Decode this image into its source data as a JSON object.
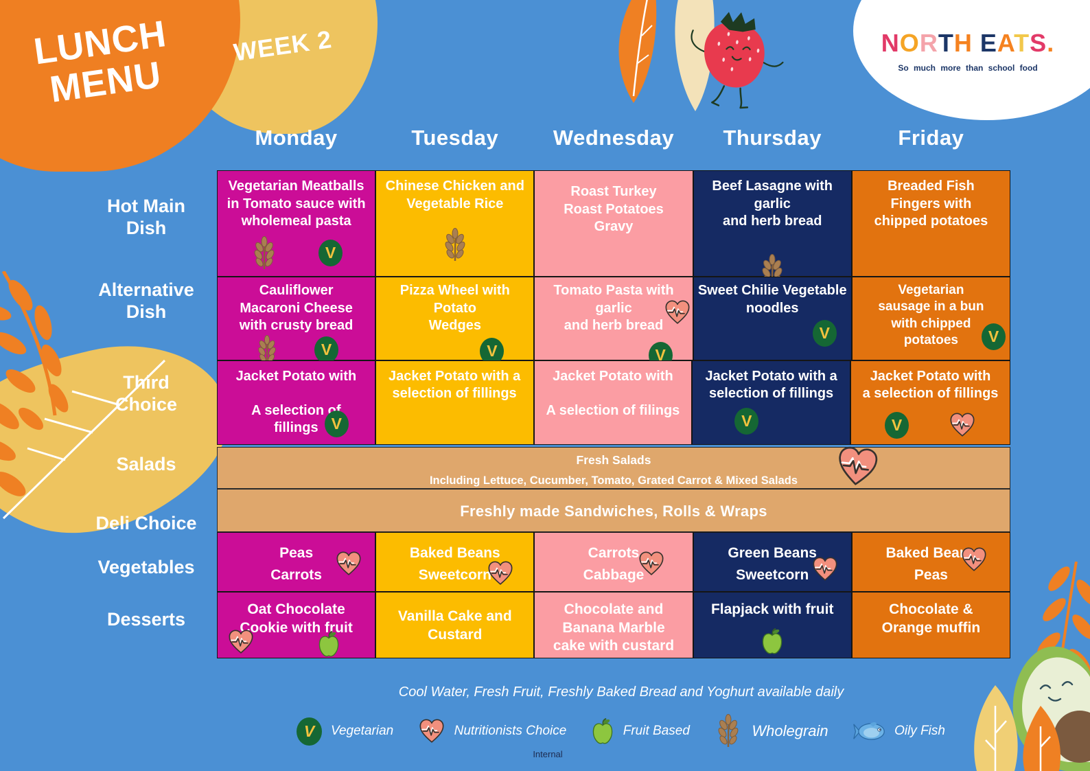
{
  "header": {
    "title": "LUNCH\nMENU",
    "week": "WEEK 2",
    "logo": {
      "letters": [
        {
          "ch": "N",
          "color": "#e23a68"
        },
        {
          "ch": "O",
          "color": "#f5a425"
        },
        {
          "ch": "R",
          "color": "#f4a3aa"
        },
        {
          "ch": "T",
          "color": "#1c3667"
        },
        {
          "ch": "H",
          "color": "#f58220"
        },
        {
          "ch": " ",
          "color": "#ffffff"
        },
        {
          "ch": "E",
          "color": "#1c3667"
        },
        {
          "ch": "A",
          "color": "#f58220"
        },
        {
          "ch": "T",
          "color": "#f2c84b"
        },
        {
          "ch": "S",
          "color": "#e23a68"
        },
        {
          "ch": ".",
          "color": "#f58220"
        }
      ],
      "tagline": "So much more than school food"
    }
  },
  "days": [
    "Monday",
    "Tuesday",
    "Wednesday",
    "Thursday",
    "Friday"
  ],
  "grid": {
    "hot_main": {
      "label": "Hot Main\nDish",
      "cells": [
        {
          "text": "Vegetarian Meatballs\nin Tomato sauce with\nwholemeal pasta",
          "icons": [
            "wholegrain",
            "vegetarian"
          ]
        },
        {
          "text": "Chinese Chicken and\nVegetable Rice",
          "icons": [
            "wholegrain"
          ]
        },
        {
          "text": "Roast Turkey\nRoast Potatoes\nGravy",
          "icons": []
        },
        {
          "text": "Beef Lasagne with garlic\nand herb bread",
          "icons": [
            "wholegrain"
          ]
        },
        {
          "text": "Breaded Fish\nFingers with\nchipped potatoes",
          "icons": []
        }
      ]
    },
    "alternative": {
      "label": "Alternative\nDish",
      "cells": [
        {
          "text": "Cauliflower\nMacaroni Cheese\nwith crusty bread",
          "icons": [
            "wholegrain",
            "vegetarian"
          ]
        },
        {
          "text": "Pizza Wheel with Potato\nWedges",
          "icons": [
            "vegetarian"
          ]
        },
        {
          "text": "Tomato Pasta with garlic\nand herb bread",
          "icons": [
            "nutritionists-choice",
            "vegetarian"
          ]
        },
        {
          "text": "Sweet Chilie Vegetable\nnoodles",
          "icons": [
            "vegetarian"
          ]
        },
        {
          "text": "Vegetarian\nsausage in a bun\nwith chipped\npotatoes",
          "icons": [
            "vegetarian"
          ]
        }
      ]
    },
    "third_choice": {
      "label": "Third\nChoice",
      "cells": [
        {
          "text": "Jacket Potato with\n\nA selection of\nfillings",
          "icons": [
            "vegetarian"
          ]
        },
        {
          "text": "Jacket Potato with a\nselection of fillings",
          "icons": []
        },
        {
          "text": "Jacket Potato with\n\nA selection of filings",
          "icons": []
        },
        {
          "text": "Jacket Potato with a\nselection of fillings",
          "icons": [
            "vegetarian"
          ]
        },
        {
          "text": "Jacket Potato with\na selection of fillings",
          "icons": [
            "vegetarian",
            "nutritionists-choice"
          ]
        }
      ]
    },
    "salads": {
      "label": "Salads",
      "line1": "Fresh Salads",
      "line2": "Including Lettuce, Cucumber, Tomato, Grated Carrot & Mixed Salads",
      "icon": "nutritionists-choice"
    },
    "deli": {
      "label": "Deli Choice",
      "text": "Freshly made Sandwiches, Rolls & Wraps"
    },
    "vegetables": {
      "label": "Vegetables",
      "cells": [
        {
          "text": "Peas\nCarrots",
          "icons": [
            "nutritionists-choice"
          ]
        },
        {
          "text": "Baked Beans\nSweetcorn",
          "icons": [
            "nutritionists-choice"
          ]
        },
        {
          "text": "Carrots\nCabbage",
          "icons": [
            "nutritionists-choice"
          ]
        },
        {
          "text": "Green Beans\nSweetcorn",
          "icons": [
            "nutritionists-choice"
          ]
        },
        {
          "text": "Baked Beans\nPeas",
          "icons": [
            "nutritionists-choice"
          ]
        }
      ]
    },
    "desserts": {
      "label": "Desserts",
      "cells": [
        {
          "text": "Oat Chocolate\nCookie with fruit",
          "icons": [
            "nutritionists-choice",
            "fruit-based"
          ]
        },
        {
          "text": "Vanilla Cake and\nCustard",
          "icons": []
        },
        {
          "text": "Chocolate and\nBanana Marble\ncake with custard",
          "icons": []
        },
        {
          "text": "Flapjack with fruit",
          "icons": [
            "fruit-based"
          ]
        },
        {
          "text": "Chocolate &\nOrange muffin",
          "icons": []
        }
      ]
    }
  },
  "footer": {
    "note": "Cool Water, Fresh Fruit, Freshly Baked Bread and Yoghurt available daily",
    "legend": [
      {
        "icon": "vegetarian",
        "label": "Vegetarian"
      },
      {
        "icon": "nutritionists-choice",
        "label": "Nutritionists Choice"
      },
      {
        "icon": "fruit-based",
        "label": "Fruit Based"
      },
      {
        "icon": "wholegrain",
        "label": "Wholegrain"
      },
      {
        "icon": "oily-fish",
        "label": "Oily Fish"
      }
    ],
    "internal": "Internal"
  },
  "colors": {
    "background": "#4b90d4",
    "monday": "#cb0d97",
    "tuesday": "#fcbc00",
    "wednesday": "#fb9da3",
    "thursday": "#152a63",
    "friday": "#e2730f",
    "band": "#dfa76c",
    "blob_orange": "#ef7f22",
    "blob_yellow": "#eec45f",
    "vegetarian_badge_green": "#156734",
    "vegetarian_badge_v": "#f2c23e",
    "heart_fill": "#f2907e",
    "apple_green": "#8dc63f",
    "wheat_brown": "#aa7f51",
    "fish_blue": "#6cb2e6"
  }
}
